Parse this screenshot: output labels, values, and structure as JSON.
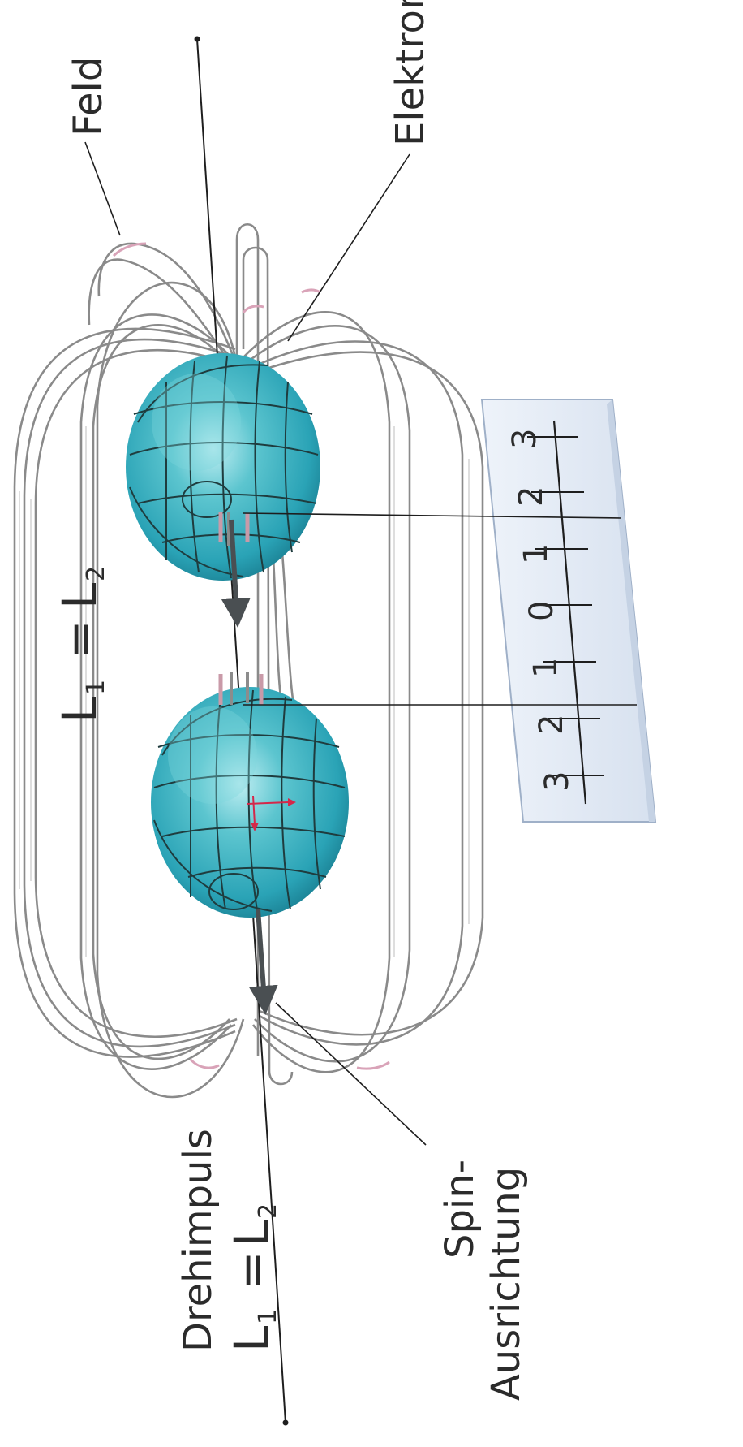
{
  "labels": {
    "feld": "Feld",
    "elektron": "Elektron",
    "equation_top_l": "L",
    "equation_top_1": "1",
    "equation_top_eq": "=",
    "equation_top_r": "L",
    "equation_top_2": "2",
    "drehimpuls": "Drehimpuls",
    "equation_bottom_l": "L",
    "equation_bottom_1": "1",
    "equation_bottom_eq": "=",
    "equation_bottom_r": "L",
    "equation_bottom_2": "2",
    "spin_line1": "Spin-",
    "spin_line2": "Ausrichtung"
  },
  "ruler": {
    "ticks": [
      "3",
      "2",
      "1",
      "0",
      "1",
      "2",
      "3"
    ]
  },
  "colors": {
    "sphere": "#3fb3c3",
    "sphere_dark": "#1e8d9c",
    "ruler_fill": "#e3ebf6",
    "ruler_edge": "#9fb0c8",
    "field_pink": "#d9a3b8",
    "arrow_red": "#d4284a"
  }
}
